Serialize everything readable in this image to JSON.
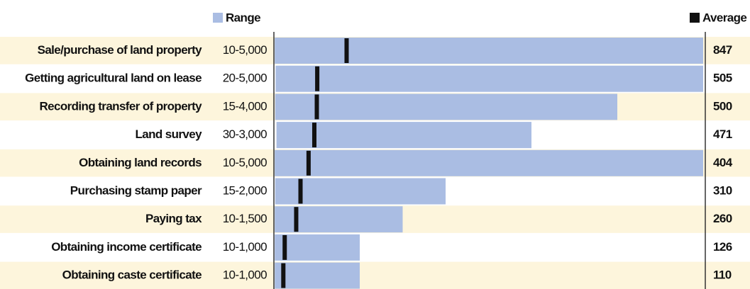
{
  "chart_data": {
    "type": "range",
    "categories": [
      "Sale/purchase of land property",
      "Getting agricultural land on lease",
      "Recording transfer of property",
      "Land survey",
      "Obtaining land records",
      "Purchasing stamp paper",
      "Paying tax",
      "Obtaining income certificate",
      "Obtaining caste certificate"
    ],
    "range_labels": [
      "10-5,000",
      "20-5,000",
      "15-4,000",
      "30-3,000",
      "10-5,000",
      "15-2,000",
      "10-1,500",
      "10-1,000",
      "10-1,000"
    ],
    "series": [
      {
        "name": "Range",
        "color": "#aabde3",
        "low": [
          10,
          20,
          15,
          30,
          10,
          15,
          10,
          10,
          10
        ],
        "high": [
          5000,
          5000,
          4000,
          3000,
          5000,
          2000,
          1500,
          1000,
          1000
        ]
      },
      {
        "name": "Average",
        "color": "#111111",
        "values": [
          847,
          505,
          500,
          471,
          404,
          310,
          260,
          126,
          110
        ]
      }
    ],
    "row_color": "#fdf5dc"
  }
}
